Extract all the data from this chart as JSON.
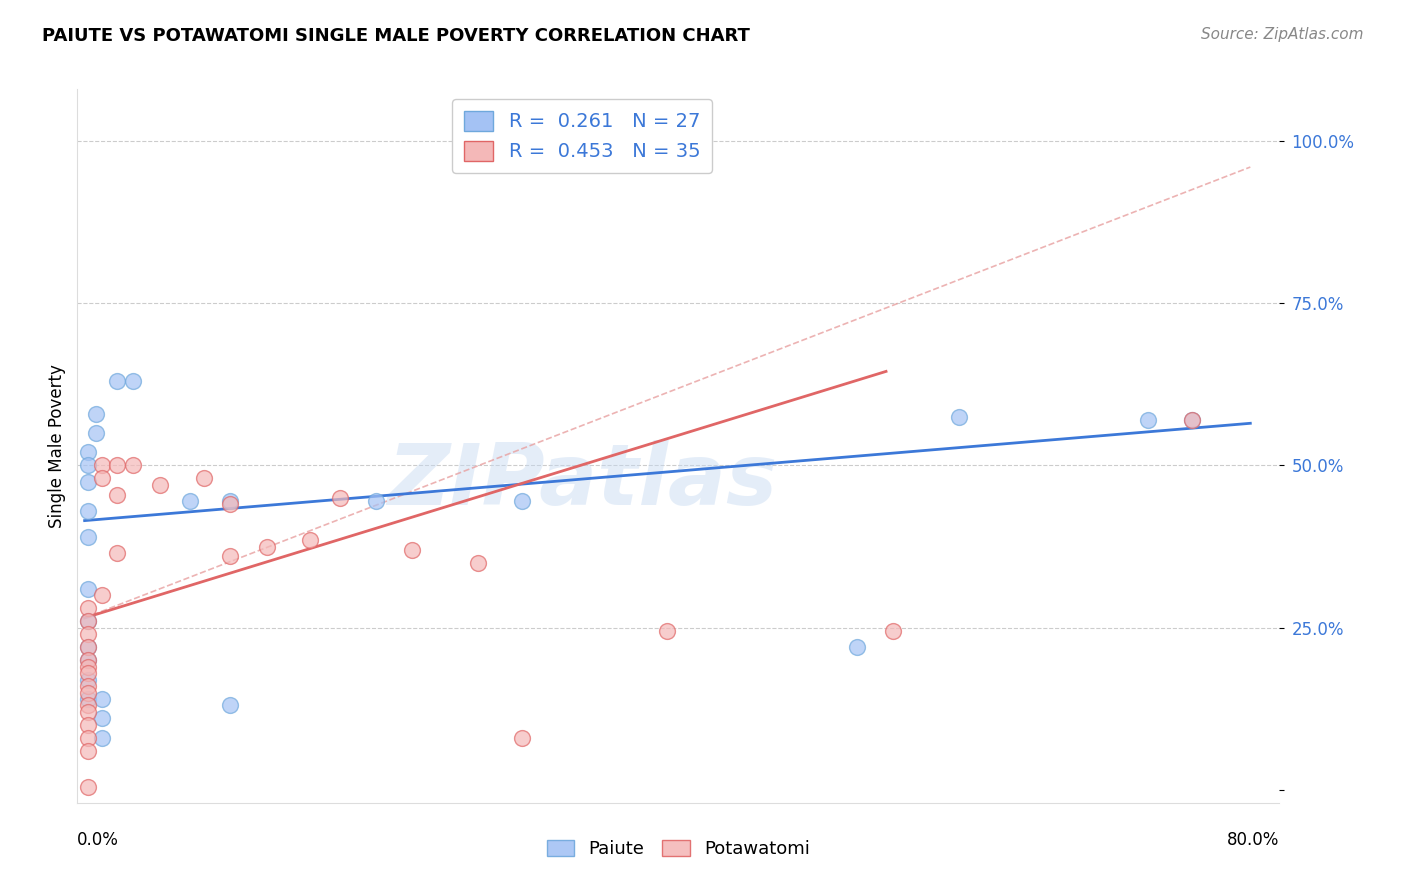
{
  "title": "PAIUTE VS POTAWATOMI SINGLE MALE POVERTY CORRELATION CHART",
  "source": "Source: ZipAtlas.com",
  "ylabel": "Single Male Poverty",
  "xlim": [
    -0.005,
    0.82
  ],
  "ylim": [
    -0.02,
    1.08
  ],
  "paiute_color": "#a4c2f4",
  "paiute_edge_color": "#6fa8dc",
  "potawatomi_color": "#f4b8b8",
  "potawatomi_edge_color": "#e06666",
  "blue_line_color": "#3c78d8",
  "pink_line_color": "#e06666",
  "dashed_color": "#e8a0a0",
  "watermark": "ZIPatlas",
  "watermark_color": "#c5d9f1",
  "paiute_x": [
    0.022,
    0.033,
    0.008,
    0.008,
    0.002,
    0.002,
    0.002,
    0.002,
    0.002,
    0.002,
    0.002,
    0.002,
    0.002,
    0.002,
    0.002,
    0.012,
    0.012,
    0.012,
    0.072,
    0.1,
    0.1,
    0.2,
    0.3,
    0.53,
    0.6,
    0.73,
    0.76
  ],
  "paiute_y": [
    0.63,
    0.63,
    0.58,
    0.55,
    0.52,
    0.5,
    0.475,
    0.43,
    0.39,
    0.31,
    0.26,
    0.22,
    0.2,
    0.17,
    0.14,
    0.14,
    0.11,
    0.08,
    0.445,
    0.445,
    0.13,
    0.445,
    0.445,
    0.22,
    0.575,
    0.57,
    0.57
  ],
  "potawatomi_x": [
    0.002,
    0.002,
    0.002,
    0.002,
    0.002,
    0.002,
    0.002,
    0.002,
    0.002,
    0.002,
    0.002,
    0.002,
    0.002,
    0.002,
    0.002,
    0.012,
    0.012,
    0.012,
    0.022,
    0.022,
    0.022,
    0.033,
    0.052,
    0.082,
    0.1,
    0.1,
    0.125,
    0.155,
    0.175,
    0.225,
    0.27,
    0.3,
    0.4,
    0.555,
    0.76
  ],
  "potawatomi_y": [
    0.28,
    0.26,
    0.24,
    0.22,
    0.2,
    0.19,
    0.18,
    0.16,
    0.15,
    0.13,
    0.12,
    0.1,
    0.08,
    0.06,
    0.005,
    0.5,
    0.48,
    0.3,
    0.5,
    0.455,
    0.365,
    0.5,
    0.47,
    0.48,
    0.44,
    0.36,
    0.375,
    0.385,
    0.45,
    0.37,
    0.35,
    0.08,
    0.245,
    0.245,
    0.57
  ],
  "blue_line_x": [
    0.0,
    0.8
  ],
  "blue_line_y": [
    0.415,
    0.565
  ],
  "pink_line_x": [
    0.0,
    0.55
  ],
  "pink_line_y": [
    0.265,
    0.645
  ],
  "dashed_line_x": [
    0.0,
    0.8
  ],
  "dashed_line_y": [
    0.265,
    0.96
  ],
  "yticks": [
    0.0,
    0.25,
    0.5,
    0.75,
    1.0
  ],
  "ytick_labels": [
    "",
    "25.0%",
    "50.0%",
    "75.0%",
    "100.0%"
  ],
  "legend_label_blue": "R =  0.261   N = 27",
  "legend_label_pink": "R =  0.453   N = 35",
  "legend_label_blue_color": "#3c78d8",
  "legend_label_pink_color": "#3c78d8",
  "legend_N_color": "#3c78d8",
  "background_color": "#ffffff",
  "grid_color": "#cccccc",
  "grid_linestyle": "--"
}
